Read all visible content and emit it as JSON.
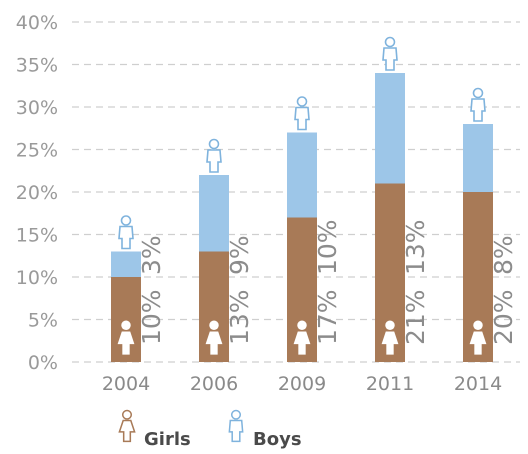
{
  "colors": {
    "girls": "#a87a57",
    "boys": "#9dc6e8",
    "girls_icon": "#ffffff",
    "boys_icon": "#7fb3dd",
    "grid": "#cfcfcf",
    "text": "#999999"
  },
  "icons": {
    "girls": "girl-figure-icon",
    "boys": "boy-figure-icon"
  },
  "chart_data": {
    "type": "bar",
    "stacked": true,
    "categories": [
      "2004",
      "2006",
      "2009",
      "2011",
      "2014"
    ],
    "series": [
      {
        "name": "Girls",
        "values": [
          10,
          13,
          17,
          21,
          20
        ],
        "labels": [
          "10%",
          "13%",
          "17%",
          "21%",
          "20%"
        ]
      },
      {
        "name": "Boys",
        "values": [
          3,
          9,
          10,
          13,
          8
        ],
        "labels": [
          "3%",
          "9%",
          "10%",
          "13%",
          "8%"
        ]
      }
    ],
    "ylim": [
      0,
      40
    ],
    "y_ticks": [
      {
        "value": 0,
        "label": "0%"
      },
      {
        "value": 5,
        "label": "5%"
      },
      {
        "value": 10,
        "label": "10%"
      },
      {
        "value": 15,
        "label": "15%"
      },
      {
        "value": 20,
        "label": "20%"
      },
      {
        "value": 25,
        "label": "25%"
      },
      {
        "value": 30,
        "label": "30%"
      },
      {
        "value": 35,
        "label": "35%"
      },
      {
        "value": 40,
        "label": "40%"
      }
    ],
    "grid": true,
    "legend_position": "bottom-left"
  }
}
